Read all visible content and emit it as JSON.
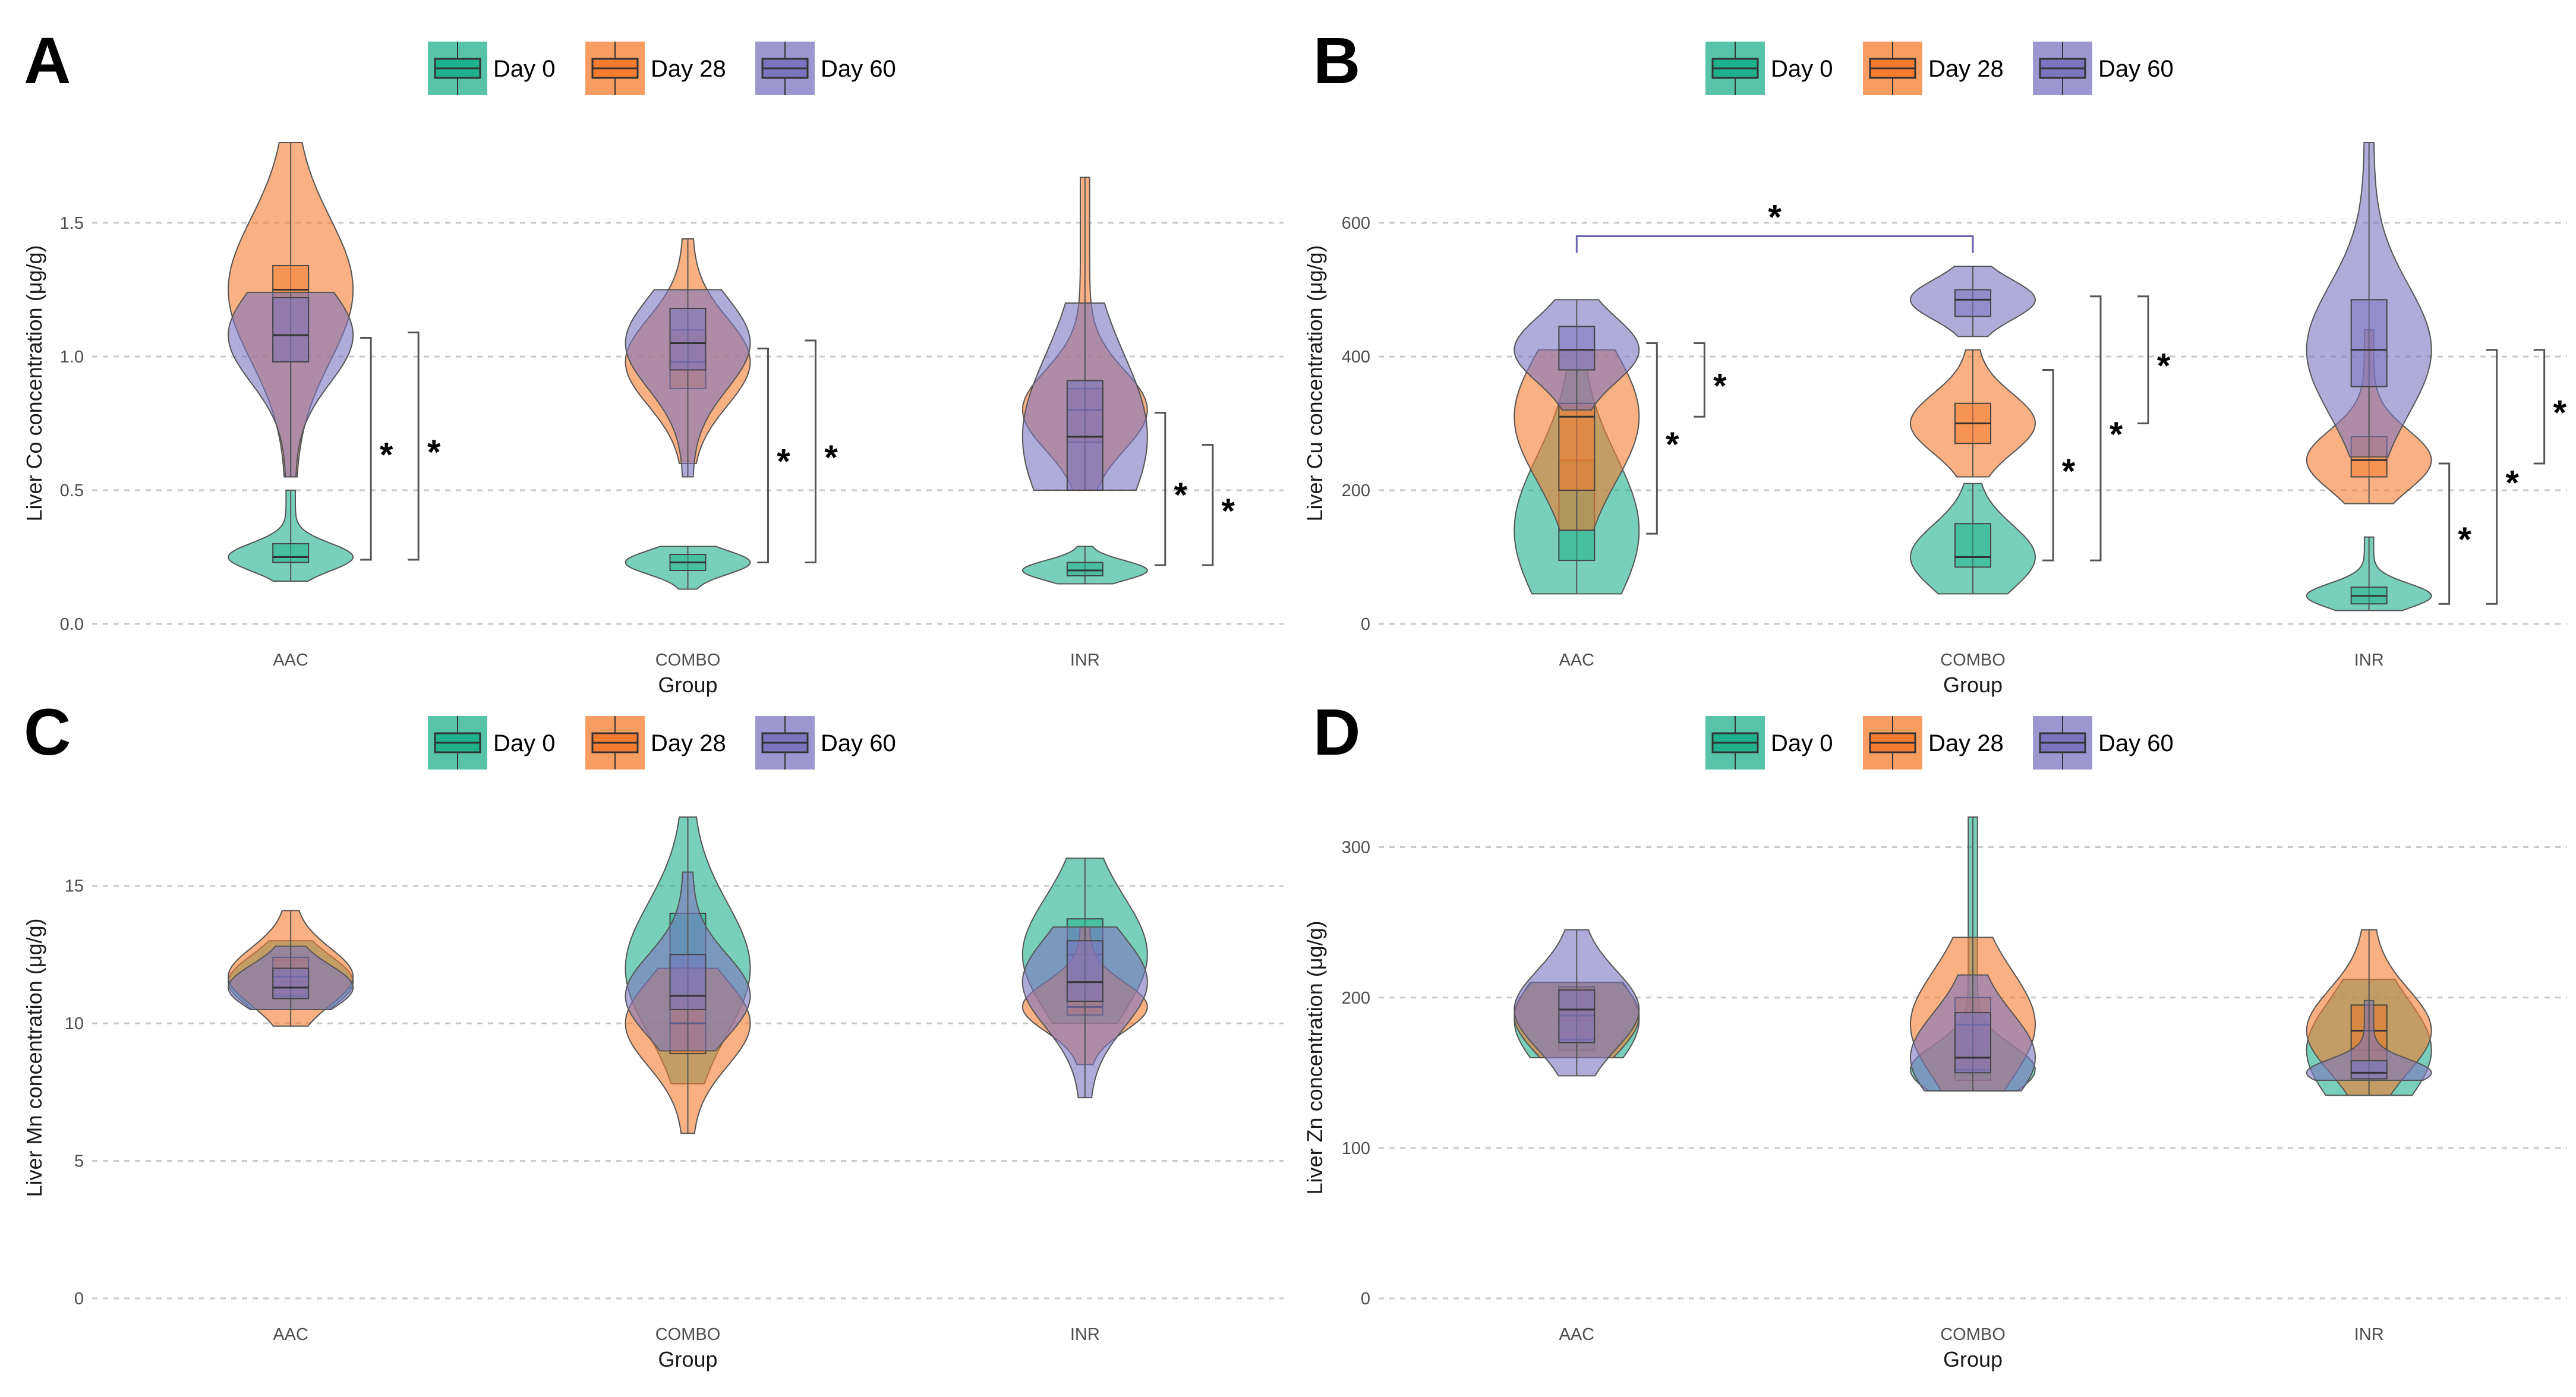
{
  "legend": {
    "title": "",
    "items": [
      {
        "label": "Day 0",
        "color": "#1fb08c"
      },
      {
        "label": "Day 28",
        "color": "#f57c2e"
      },
      {
        "label": "Day 60",
        "color": "#7b74bf"
      }
    ]
  },
  "colors": {
    "Day 0": "#1fb08c",
    "Day 28": "#f57c2e",
    "Day 60": "#7b74bf",
    "line": "#444444",
    "bracket": "#6a64b0"
  },
  "chart_data": [
    {
      "panel": "A",
      "type": "violin",
      "title": "",
      "xlabel": "Group",
      "ylabel": "Liver Co concentration (μg/g)",
      "ylim": [
        0,
        1.8
      ],
      "yticks": [
        0,
        0.5,
        1,
        1.5
      ],
      "ytick_labels": [
        "0.0",
        "0.5",
        "1.0",
        "1.5"
      ],
      "categories": [
        "AAC",
        "COMBO",
        "INR"
      ],
      "series": [
        {
          "name": "Day 0",
          "groups": [
            {
              "category": "AAC",
              "min": 0.16,
              "q1": 0.23,
              "median": 0.25,
              "q3": 0.3,
              "max": 0.5
            },
            {
              "category": "COMBO",
              "min": 0.13,
              "q1": 0.2,
              "median": 0.23,
              "q3": 0.26,
              "max": 0.29
            },
            {
              "category": "INR",
              "min": 0.15,
              "q1": 0.18,
              "median": 0.2,
              "q3": 0.23,
              "max": 0.29
            }
          ]
        },
        {
          "name": "Day 28",
          "groups": [
            {
              "category": "AAC",
              "min": 0.55,
              "q1": 0.98,
              "median": 1.25,
              "q3": 1.34,
              "max": 1.8
            },
            {
              "category": "COMBO",
              "min": 0.6,
              "q1": 0.88,
              "median": 0.98,
              "q3": 1.1,
              "max": 1.44
            },
            {
              "category": "INR",
              "min": 0.5,
              "q1": 0.68,
              "median": 0.8,
              "q3": 0.88,
              "max": 1.67
            }
          ]
        },
        {
          "name": "Day 60",
          "groups": [
            {
              "category": "AAC",
              "min": 0.55,
              "q1": 0.98,
              "median": 1.08,
              "q3": 1.22,
              "max": 1.24
            },
            {
              "category": "COMBO",
              "min": 0.55,
              "q1": 0.95,
              "median": 1.05,
              "q3": 1.18,
              "max": 1.25
            },
            {
              "category": "INR",
              "min": 0.5,
              "q1": 0.5,
              "median": 0.7,
              "q3": 0.91,
              "max": 1.2
            }
          ]
        }
      ],
      "significance": [
        {
          "category": "AAC",
          "y_low": 0.24,
          "y_high": 1.07,
          "offset": 0,
          "label": "*"
        },
        {
          "category": "AAC",
          "y_low": 0.24,
          "y_high": 1.09,
          "offset": 1,
          "label": "*"
        },
        {
          "category": "COMBO",
          "y_low": 0.23,
          "y_high": 1.03,
          "offset": 0,
          "label": "*"
        },
        {
          "category": "COMBO",
          "y_low": 0.23,
          "y_high": 1.06,
          "offset": 1,
          "label": "*"
        },
        {
          "category": "INR",
          "y_low": 0.22,
          "y_high": 0.79,
          "offset": 0,
          "label": "*"
        },
        {
          "category": "INR",
          "y_low": 0.22,
          "y_high": 0.67,
          "offset": 1,
          "label": "*"
        }
      ],
      "top_brackets": []
    },
    {
      "panel": "B",
      "type": "violin",
      "title": "",
      "xlabel": "Group",
      "ylabel": "Liver Cu concentration (μg/g)",
      "ylim": [
        0,
        720
      ],
      "yticks": [
        0,
        200,
        400,
        600
      ],
      "ytick_labels": [
        "0",
        "200",
        "400",
        "600"
      ],
      "categories": [
        "AAC",
        "COMBO",
        "INR"
      ],
      "series": [
        {
          "name": "Day 0",
          "groups": [
            {
              "category": "AAC",
              "min": 45,
              "q1": 95,
              "median": 140,
              "q3": 245,
              "max": 380
            },
            {
              "category": "COMBO",
              "min": 45,
              "q1": 85,
              "median": 100,
              "q3": 150,
              "max": 210
            },
            {
              "category": "INR",
              "min": 20,
              "q1": 30,
              "median": 42,
              "q3": 55,
              "max": 130
            }
          ]
        },
        {
          "name": "Day 28",
          "groups": [
            {
              "category": "AAC",
              "min": 140,
              "q1": 200,
              "median": 310,
              "q3": 330,
              "max": 410
            },
            {
              "category": "COMBO",
              "min": 220,
              "q1": 270,
              "median": 300,
              "q3": 330,
              "max": 410
            },
            {
              "category": "INR",
              "min": 180,
              "q1": 220,
              "median": 245,
              "q3": 280,
              "max": 440
            }
          ]
        },
        {
          "name": "Day 60",
          "groups": [
            {
              "category": "AAC",
              "min": 320,
              "q1": 380,
              "median": 410,
              "q3": 445,
              "max": 485
            },
            {
              "category": "COMBO",
              "min": 430,
              "q1": 460,
              "median": 485,
              "q3": 500,
              "max": 535
            },
            {
              "category": "INR",
              "min": 250,
              "q1": 355,
              "median": 410,
              "q3": 485,
              "max": 720
            }
          ]
        }
      ],
      "significance": [
        {
          "category": "AAC",
          "y_low": 135,
          "y_high": 420,
          "offset": 0,
          "label": "*"
        },
        {
          "category": "AAC",
          "y_low": 310,
          "y_high": 420,
          "offset": 1,
          "label": "*"
        },
        {
          "category": "COMBO",
          "y_low": 95,
          "y_high": 380,
          "offset": 0,
          "label": "*"
        },
        {
          "category": "COMBO",
          "y_low": 95,
          "y_high": 490,
          "offset": 1,
          "label": "*"
        },
        {
          "category": "COMBO",
          "y_low": 300,
          "y_high": 490,
          "offset": 2,
          "label": "*"
        },
        {
          "category": "INR",
          "y_low": 30,
          "y_high": 240,
          "offset": 0,
          "label": "*"
        },
        {
          "category": "INR",
          "y_low": 30,
          "y_high": 410,
          "offset": 1,
          "label": "*"
        },
        {
          "category": "INR",
          "y_low": 240,
          "y_high": 410,
          "offset": 2,
          "label": "*"
        }
      ],
      "top_brackets": [
        {
          "from": "AAC",
          "to": "COMBO",
          "y": 580,
          "y_end": 555,
          "label": "*"
        }
      ]
    },
    {
      "panel": "C",
      "type": "violin",
      "title": "",
      "xlabel": "Group",
      "ylabel": "Liver Mn concentration (μg/g)",
      "ylim": [
        0,
        17.5
      ],
      "yticks": [
        0,
        5,
        10,
        15
      ],
      "ytick_labels": [
        "0",
        "5",
        "10",
        "15"
      ],
      "categories": [
        "AAC",
        "COMBO",
        "INR"
      ],
      "series": [
        {
          "name": "Day 0",
          "groups": [
            {
              "category": "AAC",
              "min": 10.5,
              "q1": 11.0,
              "median": 11.5,
              "q3": 12.3,
              "max": 13.0
            },
            {
              "category": "COMBO",
              "min": 7.8,
              "q1": 10.8,
              "median": 12.0,
              "q3": 14.0,
              "max": 17.5
            },
            {
              "category": "INR",
              "min": 10.0,
              "q1": 11.0,
              "median": 12.5,
              "q3": 13.8,
              "max": 16.0
            }
          ]
        },
        {
          "name": "Day 28",
          "groups": [
            {
              "category": "AAC",
              "min": 9.9,
              "q1": 11.0,
              "median": 11.7,
              "q3": 12.4,
              "max": 14.1
            },
            {
              "category": "COMBO",
              "min": 6.0,
              "q1": 8.9,
              "median": 10.0,
              "q3": 11.0,
              "max": 12.0
            },
            {
              "category": "INR",
              "min": 8.5,
              "q1": 10.3,
              "median": 10.6,
              "q3": 11.5,
              "max": 13.5
            }
          ]
        },
        {
          "name": "Day 60",
          "groups": [
            {
              "category": "AAC",
              "min": 10.5,
              "q1": 10.9,
              "median": 11.3,
              "q3": 12.0,
              "max": 12.8
            },
            {
              "category": "COMBO",
              "min": 9.0,
              "q1": 10.5,
              "median": 11.0,
              "q3": 12.5,
              "max": 15.5
            },
            {
              "category": "INR",
              "min": 7.3,
              "q1": 10.8,
              "median": 11.5,
              "q3": 13.0,
              "max": 13.5
            }
          ]
        }
      ],
      "significance": [],
      "top_brackets": []
    },
    {
      "panel": "D",
      "type": "violin",
      "title": "",
      "xlabel": "Group",
      "ylabel": "Liver Zn concentration (μg/g)",
      "ylim": [
        0,
        320
      ],
      "yticks": [
        0,
        100,
        200,
        300
      ],
      "ytick_labels": [
        "0",
        "100",
        "200",
        "300"
      ],
      "categories": [
        "AAC",
        "COMBO",
        "INR"
      ],
      "series": [
        {
          "name": "Day 0",
          "groups": [
            {
              "category": "AAC",
              "min": 160,
              "q1": 165,
              "median": 185,
              "q3": 207,
              "max": 210
            },
            {
              "category": "COMBO",
              "min": 138,
              "q1": 145,
              "median": 152,
              "q3": 165,
              "max": 320
            },
            {
              "category": "INR",
              "min": 135,
              "q1": 150,
              "median": 165,
              "q3": 195,
              "max": 212
            }
          ]
        },
        {
          "name": "Day 28",
          "groups": [
            {
              "category": "AAC",
              "min": 160,
              "q1": 172,
              "median": 188,
              "q3": 207,
              "max": 210
            },
            {
              "category": "COMBO",
              "min": 138,
              "q1": 152,
              "median": 182,
              "q3": 200,
              "max": 240
            },
            {
              "category": "INR",
              "min": 135,
              "q1": 158,
              "median": 178,
              "q3": 195,
              "max": 245
            }
          ]
        },
        {
          "name": "Day 60",
          "groups": [
            {
              "category": "AAC",
              "min": 148,
              "q1": 170,
              "median": 192,
              "q3": 205,
              "max": 245
            },
            {
              "category": "COMBO",
              "min": 138,
              "q1": 150,
              "median": 160,
              "q3": 190,
              "max": 215
            },
            {
              "category": "INR",
              "min": 145,
              "q1": 146,
              "median": 150,
              "q3": 158,
              "max": 198
            }
          ]
        }
      ],
      "significance": [],
      "top_brackets": []
    }
  ]
}
